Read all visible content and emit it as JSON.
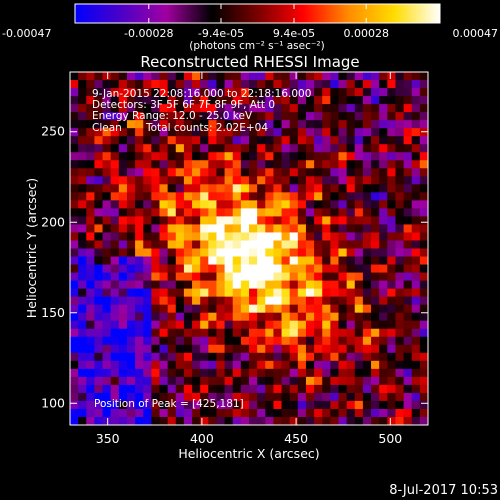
{
  "chart_data": {
    "type": "heatmap",
    "title": "Reconstructed RHESSI Image",
    "xlabel": "Heliocentric X (arcsec)",
    "ylabel": "Heliocentric Y (arcsec)",
    "xlim": [
      330,
      520
    ],
    "ylim": [
      88,
      283
    ],
    "x_ticks": [
      "350",
      "400",
      "450",
      "500"
    ],
    "x_tick_values": [
      350,
      400,
      450,
      500
    ],
    "y_ticks": [
      "100",
      "150",
      "200",
      "250"
    ],
    "y_tick_values": [
      100,
      150,
      200,
      250
    ],
    "colorbar": {
      "range": [
        -0.00047,
        0.00047
      ],
      "ticks": [
        "-0.00047",
        "-0.00028",
        "-9.4e-05",
        "9.4e-05",
        "0.00028",
        "0.00047"
      ],
      "tick_values": [
        -0.00047,
        -0.00028,
        -9.4e-05,
        9.4e-05,
        0.00028,
        0.00047
      ],
      "unit_label": "(photons cm⁻² s⁻¹ asec⁻²)",
      "colors": [
        "#0000ff",
        "#4b00c8",
        "#a000a0",
        "#000000",
        "#7a0000",
        "#ff0000",
        "#ff8c00",
        "#ffdc00",
        "#ffffff"
      ]
    },
    "annotations": {
      "time_range": "9-Jan-2015 22:08:16.000 to 22:18:16.000",
      "detectors": "Detectors: 3F 5F 6F 7F 8F 9F, Att 0",
      "energy_range": "Energy Range: 12.0 - 25.0 keV",
      "clean": "Clean",
      "total_counts": "Total counts: 2.02E+04",
      "peak_position": "Position of Peak = [425,181]"
    },
    "peak": [
      425,
      181
    ],
    "grid": false
  },
  "footer": {
    "timestamp": "8-Jul-2017 10:53"
  }
}
